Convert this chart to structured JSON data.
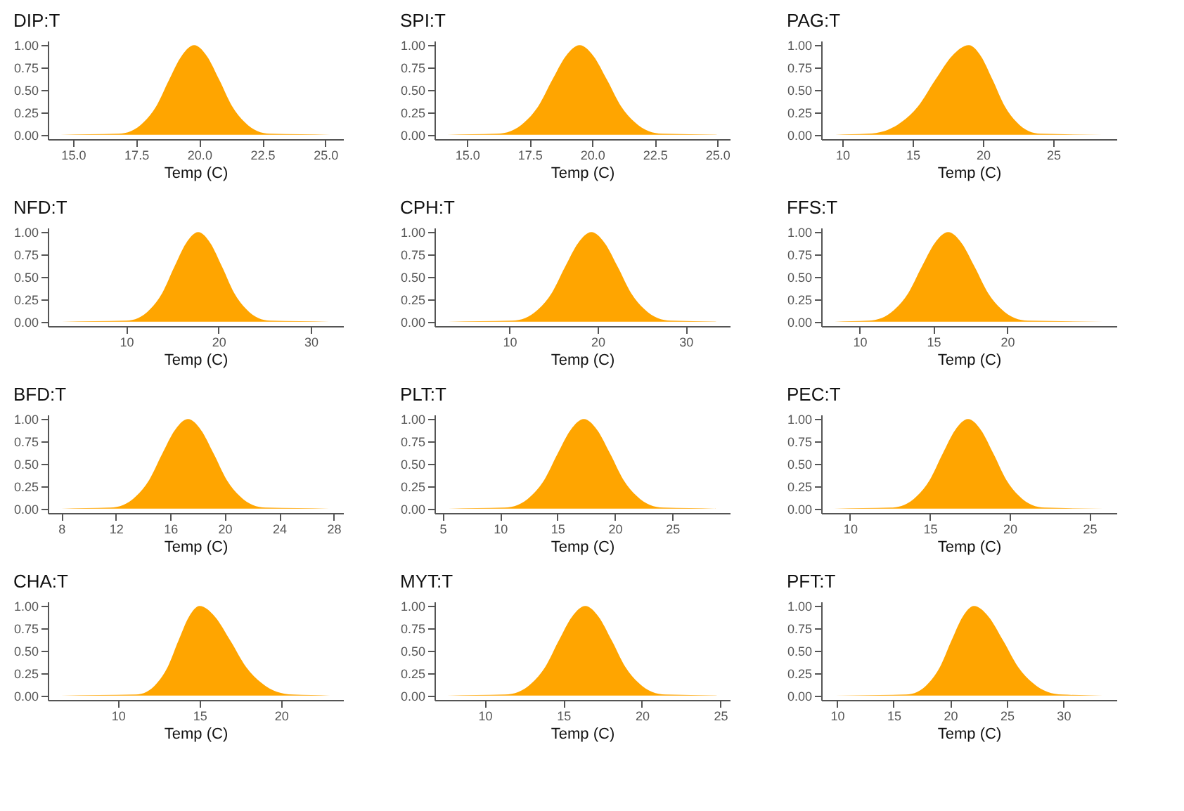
{
  "chart_data": [
    {
      "type": "area",
      "title": "DIP:T",
      "xlabel": "Temp (C)",
      "color": "#ffa500",
      "x": [
        14.5,
        16.8,
        17.3,
        17.8,
        18.3,
        18.8,
        19.3,
        19.8,
        20.3,
        20.8,
        21.3,
        21.8,
        22.3,
        22.8,
        25.2
      ],
      "values": [
        0,
        0.01,
        0.04,
        0.14,
        0.32,
        0.61,
        0.88,
        1,
        0.88,
        0.61,
        0.32,
        0.14,
        0.04,
        0.01,
        0
      ],
      "xlim": [
        14,
        25.7
      ],
      "xticks": [
        {
          "value": 15,
          "label": "15.0"
        },
        {
          "value": 17.5,
          "label": "17.5"
        },
        {
          "value": 20,
          "label": "20.0"
        },
        {
          "value": 22.5,
          "label": "22.5"
        },
        {
          "value": 25,
          "label": "25.0"
        }
      ],
      "ylim": [
        -0.05,
        1.05
      ],
      "yticks": [
        {
          "value": 0,
          "label": "0.00"
        },
        {
          "value": 0.25,
          "label": "0.25"
        },
        {
          "value": 0.5,
          "label": "0.50"
        },
        {
          "value": 0.75,
          "label": "0.75"
        },
        {
          "value": 1,
          "label": "1.00"
        }
      ]
    },
    {
      "type": "area",
      "title": "SPI:T",
      "xlabel": "Temp (C)",
      "color": "#ffa500",
      "x": [
        14.2,
        16.2,
        16.75,
        17.3,
        17.85,
        18.4,
        18.95,
        19.5,
        20.05,
        20.6,
        21.15,
        21.7,
        22.25,
        22.8,
        25
      ],
      "values": [
        0,
        0.01,
        0.04,
        0.14,
        0.32,
        0.61,
        0.88,
        1,
        0.88,
        0.61,
        0.32,
        0.14,
        0.04,
        0.01,
        0
      ],
      "xlim": [
        13.7,
        25.5
      ],
      "xticks": [
        {
          "value": 15,
          "label": "15.0"
        },
        {
          "value": 17.5,
          "label": "17.5"
        },
        {
          "value": 20,
          "label": "20.0"
        },
        {
          "value": 22.5,
          "label": "22.5"
        },
        {
          "value": 25,
          "label": "25.0"
        }
      ],
      "ylim": [
        -0.05,
        1.05
      ],
      "yticks": [
        {
          "value": 0,
          "label": "0.00"
        },
        {
          "value": 0.25,
          "label": "0.25"
        },
        {
          "value": 0.5,
          "label": "0.50"
        },
        {
          "value": 0.75,
          "label": "0.75"
        },
        {
          "value": 1,
          "label": "1.00"
        }
      ]
    },
    {
      "type": "area",
      "title": "PAG:T",
      "xlabel": "Temp (C)",
      "color": "#ffa500",
      "x": [
        9.5,
        11.8,
        13,
        14.2,
        15.4,
        16.6,
        17.8,
        19,
        19.85,
        20.7,
        21.55,
        22.4,
        23.25,
        24.1,
        28.5
      ],
      "values": [
        0,
        0.01,
        0.04,
        0.14,
        0.32,
        0.61,
        0.88,
        1,
        0.88,
        0.61,
        0.32,
        0.14,
        0.04,
        0.01,
        0
      ],
      "xlim": [
        8.5,
        29.5
      ],
      "xticks": [
        10,
        15,
        20,
        25
      ],
      "ylim": [
        -0.05,
        1.05
      ],
      "yticks": [
        {
          "value": 0,
          "label": "0.00"
        },
        {
          "value": 0.25,
          "label": "0.25"
        },
        {
          "value": 0.5,
          "label": "0.50"
        },
        {
          "value": 0.75,
          "label": "0.75"
        },
        {
          "value": 1,
          "label": "1.00"
        }
      ]
    },
    {
      "type": "area",
      "title": "NFD:T",
      "xlabel": "Temp (C)",
      "color": "#ffa500",
      "x": [
        3,
        10,
        11.3,
        12.6,
        13.9,
        15.2,
        16.5,
        17.8,
        19.1,
        20.4,
        21.7,
        23,
        24.3,
        25.6,
        32
      ],
      "values": [
        0,
        0.01,
        0.04,
        0.14,
        0.32,
        0.61,
        0.88,
        1,
        0.88,
        0.61,
        0.32,
        0.14,
        0.04,
        0.01,
        0
      ],
      "xlim": [
        1.5,
        33.5
      ],
      "xticks": [
        10,
        20,
        30
      ],
      "ylim": [
        -0.05,
        1.05
      ],
      "yticks": [
        {
          "value": 0,
          "label": "0.00"
        },
        {
          "value": 0.25,
          "label": "0.25"
        },
        {
          "value": 0.5,
          "label": "0.50"
        },
        {
          "value": 0.75,
          "label": "0.75"
        },
        {
          "value": 1,
          "label": "1.00"
        }
      ]
    },
    {
      "type": "area",
      "title": "CPH:T",
      "xlabel": "Temp (C)",
      "color": "#ffa500",
      "x": [
        3,
        10.3,
        11.8,
        13.3,
        14.8,
        16.3,
        17.8,
        19.3,
        20.8,
        22.3,
        23.8,
        25.3,
        26.8,
        28.3,
        33.5
      ],
      "values": [
        0,
        0.01,
        0.04,
        0.14,
        0.32,
        0.61,
        0.88,
        1,
        0.88,
        0.61,
        0.32,
        0.14,
        0.04,
        0.01,
        0
      ],
      "xlim": [
        1.5,
        35
      ],
      "xticks": [
        10,
        20,
        30
      ],
      "ylim": [
        -0.05,
        1.05
      ],
      "yticks": [
        {
          "value": 0,
          "label": "0.00"
        },
        {
          "value": 0.25,
          "label": "0.25"
        },
        {
          "value": 0.5,
          "label": "0.50"
        },
        {
          "value": 0.75,
          "label": "0.75"
        },
        {
          "value": 1,
          "label": "1.00"
        }
      ]
    },
    {
      "type": "area",
      "title": "FFS:T",
      "xlabel": "Temp (C)",
      "color": "#ffa500",
      "x": [
        8.3,
        10.6,
        11.5,
        12.4,
        13.3,
        14.2,
        15.1,
        16,
        16.9,
        17.8,
        18.7,
        19.6,
        20.5,
        21.4,
        26.5
      ],
      "values": [
        0,
        0.01,
        0.04,
        0.14,
        0.32,
        0.61,
        0.88,
        1,
        0.88,
        0.61,
        0.32,
        0.14,
        0.04,
        0.01,
        0
      ],
      "xlim": [
        7.4,
        27.4
      ],
      "xticks": [
        10,
        15,
        20
      ],
      "ylim": [
        -0.05,
        1.05
      ],
      "yticks": [
        {
          "value": 0,
          "label": "0.00"
        },
        {
          "value": 0.25,
          "label": "0.25"
        },
        {
          "value": 0.5,
          "label": "0.50"
        },
        {
          "value": 0.75,
          "label": "0.75"
        },
        {
          "value": 1,
          "label": "1.00"
        }
      ]
    },
    {
      "type": "area",
      "title": "BFD:T",
      "xlabel": "Temp (C)",
      "color": "#ffa500",
      "x": [
        8,
        11.6,
        12.55,
        13.5,
        14.45,
        15.4,
        16.35,
        17.3,
        18.25,
        19.2,
        20.15,
        21.1,
        22.05,
        23,
        27.7
      ],
      "values": [
        0,
        0.01,
        0.04,
        0.14,
        0.32,
        0.61,
        0.88,
        1,
        0.88,
        0.61,
        0.32,
        0.14,
        0.04,
        0.01,
        0
      ],
      "xlim": [
        7,
        28.7
      ],
      "xticks": [
        8,
        12,
        16,
        20,
        24,
        28
      ],
      "ylim": [
        -0.05,
        1.05
      ],
      "yticks": [
        {
          "value": 0,
          "label": "0.00"
        },
        {
          "value": 0.25,
          "label": "0.25"
        },
        {
          "value": 0.5,
          "label": "0.50"
        },
        {
          "value": 0.75,
          "label": "0.75"
        },
        {
          "value": 1,
          "label": "1.00"
        }
      ]
    },
    {
      "type": "area",
      "title": "PLT:T",
      "xlabel": "Temp (C)",
      "color": "#ffa500",
      "x": [
        5.5,
        10.4,
        11.55,
        12.7,
        13.85,
        15,
        16.15,
        17.3,
        18.45,
        19.6,
        20.75,
        21.9,
        23.05,
        24.2,
        28.8
      ],
      "values": [
        0,
        0.01,
        0.04,
        0.14,
        0.32,
        0.61,
        0.88,
        1,
        0.88,
        0.61,
        0.32,
        0.14,
        0.04,
        0.01,
        0
      ],
      "xlim": [
        4.3,
        30
      ],
      "xticks": [
        5,
        10,
        15,
        20,
        25
      ],
      "ylim": [
        -0.05,
        1.05
      ],
      "yticks": [
        {
          "value": 0,
          "label": "0.00"
        },
        {
          "value": 0.25,
          "label": "0.25"
        },
        {
          "value": 0.5,
          "label": "0.50"
        },
        {
          "value": 0.75,
          "label": "0.75"
        },
        {
          "value": 1,
          "label": "1.00"
        }
      ]
    },
    {
      "type": "area",
      "title": "PEC:T",
      "xlabel": "Temp (C)",
      "color": "#ffa500",
      "x": [
        9,
        12.6,
        13.4,
        14.2,
        15,
        15.8,
        16.6,
        17.4,
        18.2,
        19,
        19.8,
        20.6,
        21.4,
        22.2,
        25.9
      ],
      "values": [
        0,
        0.01,
        0.04,
        0.14,
        0.32,
        0.61,
        0.88,
        1,
        0.88,
        0.61,
        0.32,
        0.14,
        0.04,
        0.01,
        0
      ],
      "xlim": [
        8.2,
        26.7
      ],
      "xticks": [
        10,
        15,
        20,
        25
      ],
      "ylim": [
        -0.05,
        1.05
      ],
      "yticks": [
        {
          "value": 0,
          "label": "0.00"
        },
        {
          "value": 0.25,
          "label": "0.25"
        },
        {
          "value": 0.5,
          "label": "0.50"
        },
        {
          "value": 0.75,
          "label": "0.75"
        },
        {
          "value": 1,
          "label": "1.00"
        }
      ]
    },
    {
      "type": "area",
      "title": "CHA:T",
      "xlabel": "Temp (C)",
      "color": "#ffa500",
      "x": [
        6.5,
        11.1,
        11.75,
        12.4,
        13.05,
        13.7,
        14.35,
        15,
        15.95,
        16.9,
        17.85,
        18.8,
        19.75,
        20.7,
        23
      ],
      "values": [
        0,
        0.01,
        0.04,
        0.14,
        0.32,
        0.61,
        0.88,
        1,
        0.88,
        0.61,
        0.32,
        0.14,
        0.04,
        0.01,
        0
      ],
      "xlim": [
        5.7,
        23.8
      ],
      "xticks": [
        10,
        15,
        20
      ],
      "ylim": [
        -0.05,
        1.05
      ],
      "yticks": [
        {
          "value": 0,
          "label": "0.00"
        },
        {
          "value": 0.25,
          "label": "0.25"
        },
        {
          "value": 0.5,
          "label": "0.50"
        },
        {
          "value": 0.75,
          "label": "0.75"
        },
        {
          "value": 1,
          "label": "1.00"
        }
      ]
    },
    {
      "type": "area",
      "title": "MYT:T",
      "xlabel": "Temp (C)",
      "color": "#ffa500",
      "x": [
        7.6,
        11.3,
        12.15,
        13,
        13.85,
        14.7,
        15.55,
        16.4,
        17.25,
        18.1,
        18.95,
        19.8,
        20.65,
        21.5,
        24.8
      ],
      "values": [
        0,
        0.01,
        0.04,
        0.14,
        0.32,
        0.61,
        0.88,
        1,
        0.88,
        0.61,
        0.32,
        0.14,
        0.04,
        0.01,
        0
      ],
      "xlim": [
        6.8,
        25.6
      ],
      "xticks": [
        10,
        15,
        20,
        25
      ],
      "ylim": [
        -0.05,
        1.05
      ],
      "yticks": [
        {
          "value": 0,
          "label": "0.00"
        },
        {
          "value": 0.25,
          "label": "0.25"
        },
        {
          "value": 0.5,
          "label": "0.50"
        },
        {
          "value": 0.75,
          "label": "0.75"
        },
        {
          "value": 1,
          "label": "1.00"
        }
      ]
    },
    {
      "type": "area",
      "title": "PFT:T",
      "xlabel": "Temp (C)",
      "color": "#ffa500",
      "x": [
        9.8,
        16.1,
        17.1,
        18.1,
        19.1,
        20.1,
        21.1,
        22.1,
        23.4,
        24.7,
        26,
        27.3,
        28.6,
        29.9,
        33.5
      ],
      "values": [
        0,
        0.01,
        0.04,
        0.14,
        0.32,
        0.61,
        0.88,
        1,
        0.88,
        0.61,
        0.32,
        0.14,
        0.04,
        0.01,
        0
      ],
      "xlim": [
        8.6,
        34.7
      ],
      "xticks": [
        10,
        15,
        20,
        25,
        30
      ],
      "ylim": [
        -0.05,
        1.05
      ],
      "yticks": [
        {
          "value": 0,
          "label": "0.00"
        },
        {
          "value": 0.25,
          "label": "0.25"
        },
        {
          "value": 0.5,
          "label": "0.50"
        },
        {
          "value": 0.75,
          "label": "0.75"
        },
        {
          "value": 1,
          "label": "1.00"
        }
      ]
    }
  ]
}
